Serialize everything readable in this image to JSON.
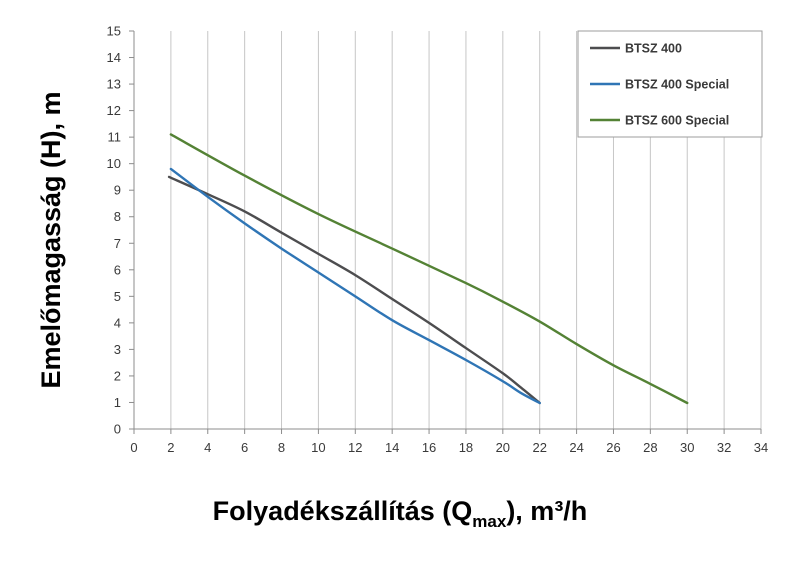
{
  "chart_data": {
    "type": "line",
    "title": "",
    "xlabel": {
      "prefix": "Folyadékszállítás (Q",
      "subscript": "max",
      "suffix": "), m³/h"
    },
    "ylabel": "Emelőmagasság (H), m",
    "xlim": [
      0,
      34
    ],
    "ylim": [
      0,
      15
    ],
    "xticks": [
      0,
      2,
      4,
      6,
      8,
      10,
      12,
      14,
      16,
      18,
      20,
      22,
      24,
      26,
      28,
      30,
      32,
      34
    ],
    "yticks": [
      0,
      1,
      2,
      3,
      4,
      5,
      6,
      7,
      8,
      9,
      10,
      11,
      12,
      13,
      14,
      15
    ],
    "grid": "vertical",
    "legend_position": "top-right",
    "series": [
      {
        "name": "BTSZ 400",
        "color": "#4d4d4f",
        "points": [
          [
            1.9,
            9.5
          ],
          [
            4,
            8.85
          ],
          [
            6,
            8.2
          ],
          [
            8,
            7.4
          ],
          [
            10,
            6.6
          ],
          [
            12,
            5.8
          ],
          [
            14,
            4.9
          ],
          [
            16,
            4.0
          ],
          [
            18,
            3.05
          ],
          [
            20,
            2.1
          ],
          [
            21,
            1.55
          ],
          [
            22,
            0.98
          ]
        ]
      },
      {
        "name": "BTSZ 400 Special",
        "color": "#2f75b5",
        "points": [
          [
            2,
            9.8
          ],
          [
            4,
            8.75
          ],
          [
            6,
            7.75
          ],
          [
            8,
            6.8
          ],
          [
            10,
            5.9
          ],
          [
            12,
            5.0
          ],
          [
            14,
            4.1
          ],
          [
            16,
            3.35
          ],
          [
            18,
            2.6
          ],
          [
            20,
            1.8
          ],
          [
            21,
            1.35
          ],
          [
            22,
            0.98
          ]
        ]
      },
      {
        "name": "BTSZ 600 Special",
        "color": "#548235",
        "points": [
          [
            2,
            11.1
          ],
          [
            6,
            9.55
          ],
          [
            10,
            8.1
          ],
          [
            14,
            6.8
          ],
          [
            18,
            5.5
          ],
          [
            20,
            4.8
          ],
          [
            22,
            4.05
          ],
          [
            24,
            3.2
          ],
          [
            26,
            2.4
          ],
          [
            28,
            1.7
          ],
          [
            30,
            0.98
          ]
        ]
      }
    ]
  }
}
